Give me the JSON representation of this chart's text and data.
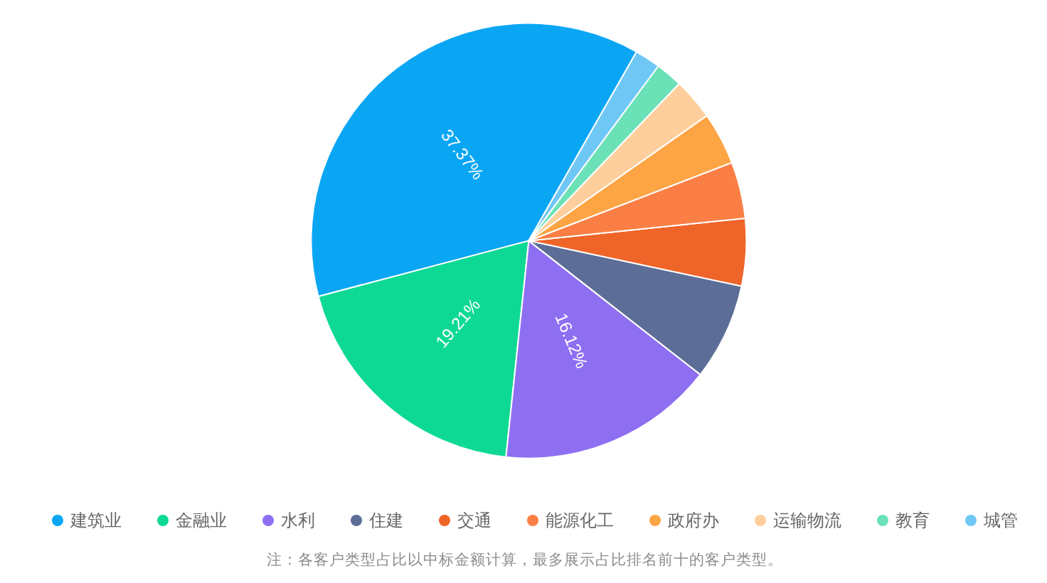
{
  "chart_data": {
    "type": "pie",
    "categories": [
      "建筑业",
      "金融业",
      "水利",
      "住建",
      "交通",
      "能源化工",
      "政府办",
      "运输物流",
      "教育",
      "城管"
    ],
    "values": [
      37.37,
      19.21,
      16.12,
      7.2,
      5.0,
      4.2,
      3.9,
      3.1,
      2.0,
      1.9
    ],
    "colors": [
      "#0aa6f4",
      "#0ed994",
      "#8e6ff2",
      "#5c6e97",
      "#ef6428",
      "#fb7f45",
      "#fda444",
      "#fecf9c",
      "#6be1b7",
      "#6fc7f6"
    ],
    "value_labels": [
      "37.37%",
      "19.21%",
      "16.12%",
      null,
      null,
      null,
      null,
      null,
      null,
      null
    ],
    "legend": "bottom",
    "annotations": [
      "注：各客户类型占比以中标金额计算，最多展示占比排名前十的客户类型。"
    ]
  }
}
